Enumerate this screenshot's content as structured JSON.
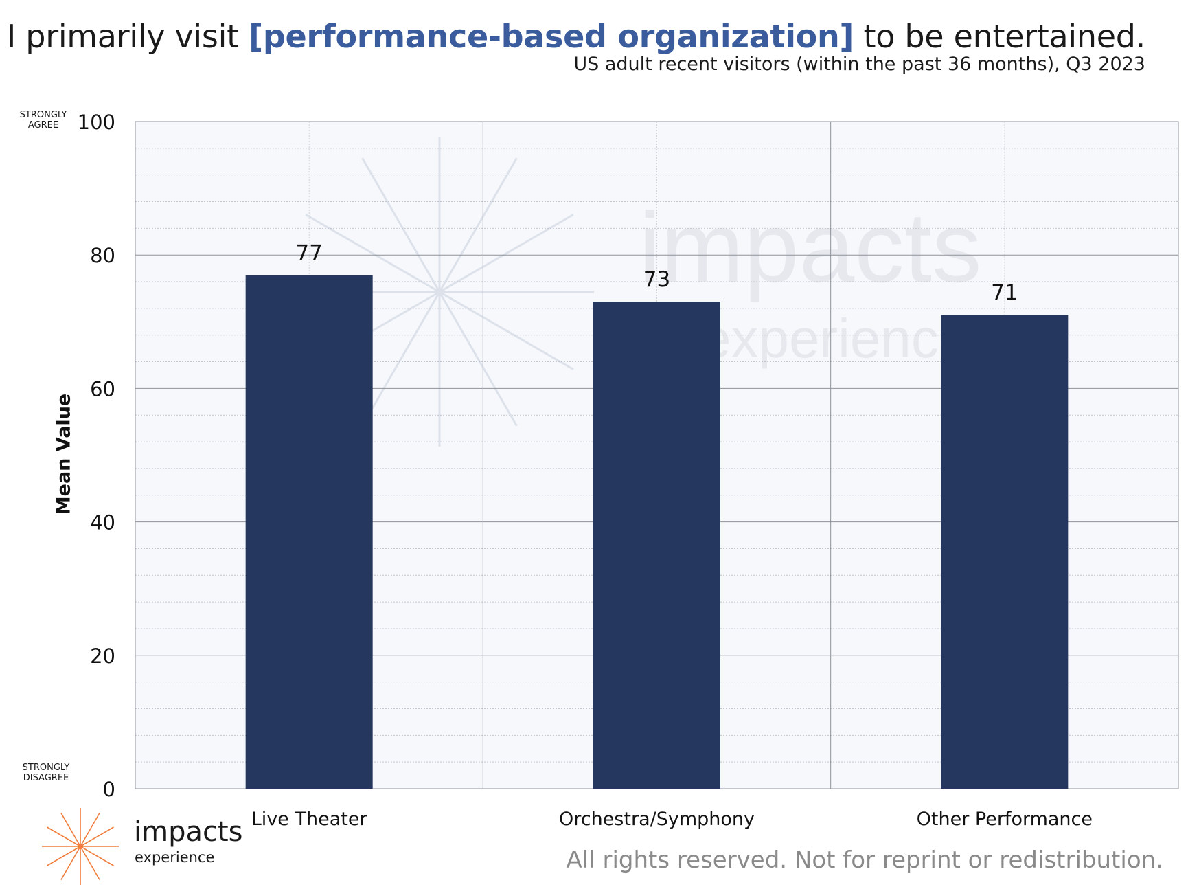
{
  "header": {
    "title_before": "I primarily visit ",
    "title_highlight": "[performance-based organization]",
    "title_after": " to be entertained.",
    "subtitle": "US adult recent visitors (within the past 36 months), Q3 2023"
  },
  "scale_anchors": {
    "top": "STRONGLY AGREE",
    "bottom": "STRONGLY DISAGREE"
  },
  "chart_data": {
    "type": "bar",
    "title": "I primarily visit [performance-based organization] to be entertained.",
    "subtitle": "US adult recent visitors (within the past 36 months), Q3 2023",
    "xlabel": "",
    "ylabel": "Mean Value",
    "ylim": [
      0,
      100
    ],
    "yticks": [
      0,
      20,
      40,
      60,
      80,
      100
    ],
    "minor_grid_step": 4,
    "grid": true,
    "legend": "none",
    "categories": [
      "Live Theater",
      "Orchestra/Symphony",
      "Other Performance"
    ],
    "values": [
      77,
      73,
      71
    ],
    "data_labels": [
      "77",
      "73",
      "71"
    ],
    "bar_color": "#25365f",
    "plot_background": "#f6f8fc"
  },
  "watermark": {
    "word": "impacts",
    "sub": "experience"
  },
  "logo": {
    "word": "impacts",
    "sub": "experience",
    "accent_color": "#f07d3c"
  },
  "footer": {
    "notice": "All rights reserved. Not for reprint or redistribution."
  }
}
